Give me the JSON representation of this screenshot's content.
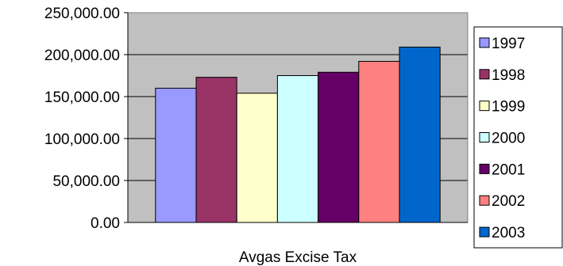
{
  "chart_data": {
    "type": "bar",
    "xlabel": "Avgas Excise Tax",
    "ylim": [
      0,
      250000
    ],
    "yticks": [
      0,
      50000,
      100000,
      150000,
      200000,
      250000
    ],
    "ytick_labels": [
      "0.00",
      "50,000.00",
      "100,000.00",
      "150,000.00",
      "200,000.00",
      "250,000.00"
    ],
    "grid": "horizontal",
    "plot_background": "#c0c0c0",
    "legend_position": "right",
    "series": [
      {
        "name": "1997",
        "value": 160000,
        "color": "#9999ff"
      },
      {
        "name": "1998",
        "value": 173000,
        "color": "#993366"
      },
      {
        "name": "1999",
        "value": 154000,
        "color": "#ffffcc"
      },
      {
        "name": "2000",
        "value": 175000,
        "color": "#ccffff"
      },
      {
        "name": "2001",
        "value": 179000,
        "color": "#660066"
      },
      {
        "name": "2002",
        "value": 192000,
        "color": "#ff8080"
      },
      {
        "name": "2003",
        "value": 209000,
        "color": "#0066cc"
      }
    ]
  }
}
